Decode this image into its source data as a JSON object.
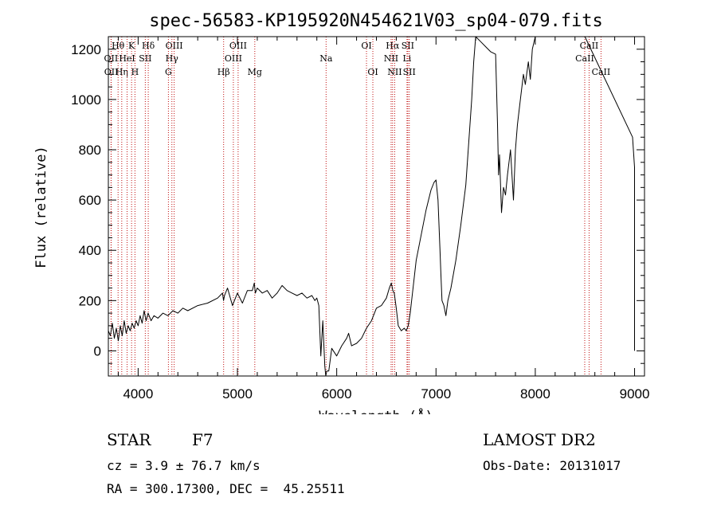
{
  "chart_data": {
    "type": "line",
    "title": "spec-56583-KP195920N454621V03_sp04-079.fits",
    "xlabel": "Wavelength (Å)",
    "ylabel": "Flux (relative)",
    "xlim": [
      3700,
      9100
    ],
    "ylim": [
      -100,
      1250
    ],
    "x_ticks": [
      4000,
      5000,
      6000,
      7000,
      8000,
      9000
    ],
    "y_ticks": [
      0,
      200,
      400,
      600,
      800,
      1000,
      1200
    ],
    "grid": false,
    "series": [
      {
        "x": [
          3700,
          3720,
          3740,
          3760,
          3780,
          3800,
          3820,
          3840,
          3860,
          3880,
          3900,
          3920,
          3940,
          3960,
          3980,
          4000,
          4020,
          4040,
          4060,
          4080,
          4100,
          4130,
          4160,
          4200,
          4250,
          4300,
          4350,
          4400,
          4450,
          4500,
          4600,
          4700,
          4800,
          4850,
          4860,
          4870,
          4900,
          4950,
          5000,
          5050,
          5100,
          5150,
          5170,
          5180,
          5200,
          5250,
          5300,
          5350,
          5400,
          5450,
          5500,
          5550,
          5600,
          5650,
          5700,
          5750,
          5780,
          5800,
          5820,
          5840,
          5860,
          5880,
          5890,
          5900,
          5920,
          5950,
          6000,
          6050,
          6100,
          6120,
          6150,
          6200,
          6250,
          6300,
          6350,
          6400,
          6450,
          6500,
          6530,
          6550,
          6565,
          6580,
          6600,
          6620,
          6650,
          6680,
          6700,
          6720,
          6740,
          6760,
          6780,
          6800,
          6850,
          6900,
          6950,
          6980,
          7000,
          7020,
          7040,
          7050,
          7060,
          7080,
          7100,
          7120,
          7150,
          7200,
          7250,
          7300,
          7330,
          7360,
          7380,
          7400,
          7450,
          7500,
          7550,
          7600,
          7620,
          7630,
          7640,
          7660,
          7680,
          7700,
          7720,
          7750,
          7780,
          7800,
          7820,
          7850,
          7880,
          7900,
          7930,
          7950,
          7970,
          8000,
          8500,
          8980,
          9000,
          9000
        ],
        "y": [
          80,
          60,
          110,
          50,
          90,
          40,
          100,
          60,
          120,
          70,
          100,
          80,
          110,
          90,
          120,
          100,
          140,
          110,
          160,
          120,
          150,
          120,
          140,
          130,
          150,
          140,
          160,
          150,
          170,
          160,
          180,
          190,
          210,
          230,
          200,
          220,
          250,
          180,
          230,
          190,
          240,
          240,
          270,
          230,
          250,
          230,
          240,
          210,
          230,
          260,
          240,
          230,
          220,
          230,
          210,
          220,
          200,
          210,
          180,
          -20,
          120,
          -60,
          -100,
          -80,
          -80,
          10,
          -20,
          20,
          50,
          70,
          20,
          30,
          50,
          90,
          120,
          170,
          180,
          210,
          250,
          270,
          240,
          230,
          170,
          100,
          80,
          90,
          80,
          100,
          150,
          220,
          290,
          360,
          460,
          560,
          640,
          670,
          680,
          600,
          400,
          300,
          200,
          180,
          140,
          200,
          250,
          360,
          500,
          660,
          830,
          1000,
          1150,
          1260,
          1230,
          1210,
          1190,
          1180,
          900,
          700,
          780,
          550,
          650,
          620,
          700,
          800,
          600,
          800,
          900,
          1000,
          1100,
          1060,
          1150,
          1080,
          1200,
          1260,
          1260,
          850,
          730,
          0
        ]
      }
    ],
    "line_markers": [
      {
        "label": "Hθ",
        "wavelength": 3798,
        "row": 0
      },
      {
        "label": "OII",
        "wavelength": 3727,
        "row": 1
      },
      {
        "label": "OII",
        "wavelength": 3729,
        "row": 2
      },
      {
        "label": "Hη",
        "wavelength": 3835,
        "row": 2
      },
      {
        "label": "K",
        "wavelength": 3934,
        "row": 0
      },
      {
        "label": "HeI",
        "wavelength": 3889,
        "row": 1
      },
      {
        "label": "H",
        "wavelength": 3968,
        "row": 2
      },
      {
        "label": "SII",
        "wavelength": 4072,
        "row": 1
      },
      {
        "label": "Hδ",
        "wavelength": 4102,
        "row": 0
      },
      {
        "label": "OIII",
        "wavelength": 4363,
        "row": 0
      },
      {
        "label": "Hγ",
        "wavelength": 4340,
        "row": 1
      },
      {
        "label": "G",
        "wavelength": 4305,
        "row": 2
      },
      {
        "label": "Hβ",
        "wavelength": 4861,
        "row": 2
      },
      {
        "label": "OIII",
        "wavelength": 5007,
        "row": 0
      },
      {
        "label": "OIII",
        "wavelength": 4959,
        "row": 1
      },
      {
        "label": "Mg",
        "wavelength": 5175,
        "row": 2
      },
      {
        "label": "Na",
        "wavelength": 5893,
        "row": 1
      },
      {
        "label": "OI",
        "wavelength": 6300,
        "row": 0
      },
      {
        "label": "OI",
        "wavelength": 6364,
        "row": 2
      },
      {
        "label": "Hα",
        "wavelength": 6563,
        "row": 0
      },
      {
        "label": "SII",
        "wavelength": 6716,
        "row": 0
      },
      {
        "label": "NII",
        "wavelength": 6548,
        "row": 1
      },
      {
        "label": "Li",
        "wavelength": 6708,
        "row": 1
      },
      {
        "label": "NII",
        "wavelength": 6584,
        "row": 2
      },
      {
        "label": "SII",
        "wavelength": 6731,
        "row": 2
      },
      {
        "label": "CaII",
        "wavelength": 8542,
        "row": 0
      },
      {
        "label": "CaII",
        "wavelength": 8498,
        "row": 1
      },
      {
        "label": "CaII",
        "wavelength": 8662,
        "row": 2
      }
    ]
  },
  "footer": {
    "object_class": "STAR",
    "subclass": "F7",
    "survey": "LAMOST DR2",
    "redshift_line": "cz = 3.9 ± 76.7 km/s",
    "obs_date": "Obs-Date: 20131017",
    "coords": "RA = 300.17300, DEC =  45.25511"
  },
  "colors": {
    "axes": "#000000",
    "spectrum": "#000000",
    "line_markers": "#c01010"
  }
}
